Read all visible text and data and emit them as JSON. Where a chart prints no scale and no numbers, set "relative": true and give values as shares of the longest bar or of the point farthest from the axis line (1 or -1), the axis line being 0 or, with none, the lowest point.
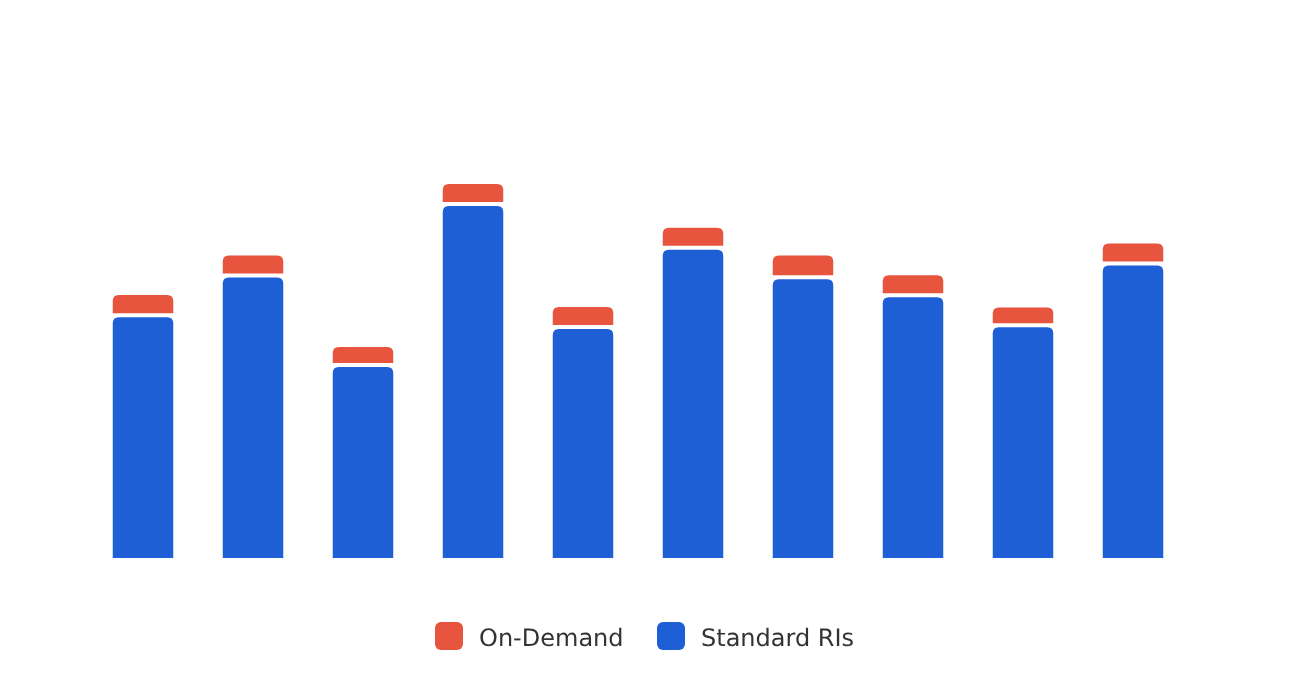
{
  "chart_data": {
    "type": "bar",
    "relative": true,
    "stacked": true,
    "legend": "bottom",
    "categories": [
      null,
      null,
      null,
      null,
      null,
      null,
      null,
      null,
      null,
      null
    ],
    "series": [
      {
        "name": "Standard RIs",
        "color": "#1f5fd6",
        "values": [
          0.644,
          0.75,
          0.511,
          0.941,
          0.612,
          0.824,
          0.745,
          0.697,
          0.617,
          0.782
        ]
      },
      {
        "name": "On-Demand",
        "color": "#e8553f",
        "values": [
          0.059,
          0.059,
          0.053,
          0.059,
          0.059,
          0.059,
          0.064,
          0.059,
          0.053,
          0.059
        ]
      }
    ]
  }
}
